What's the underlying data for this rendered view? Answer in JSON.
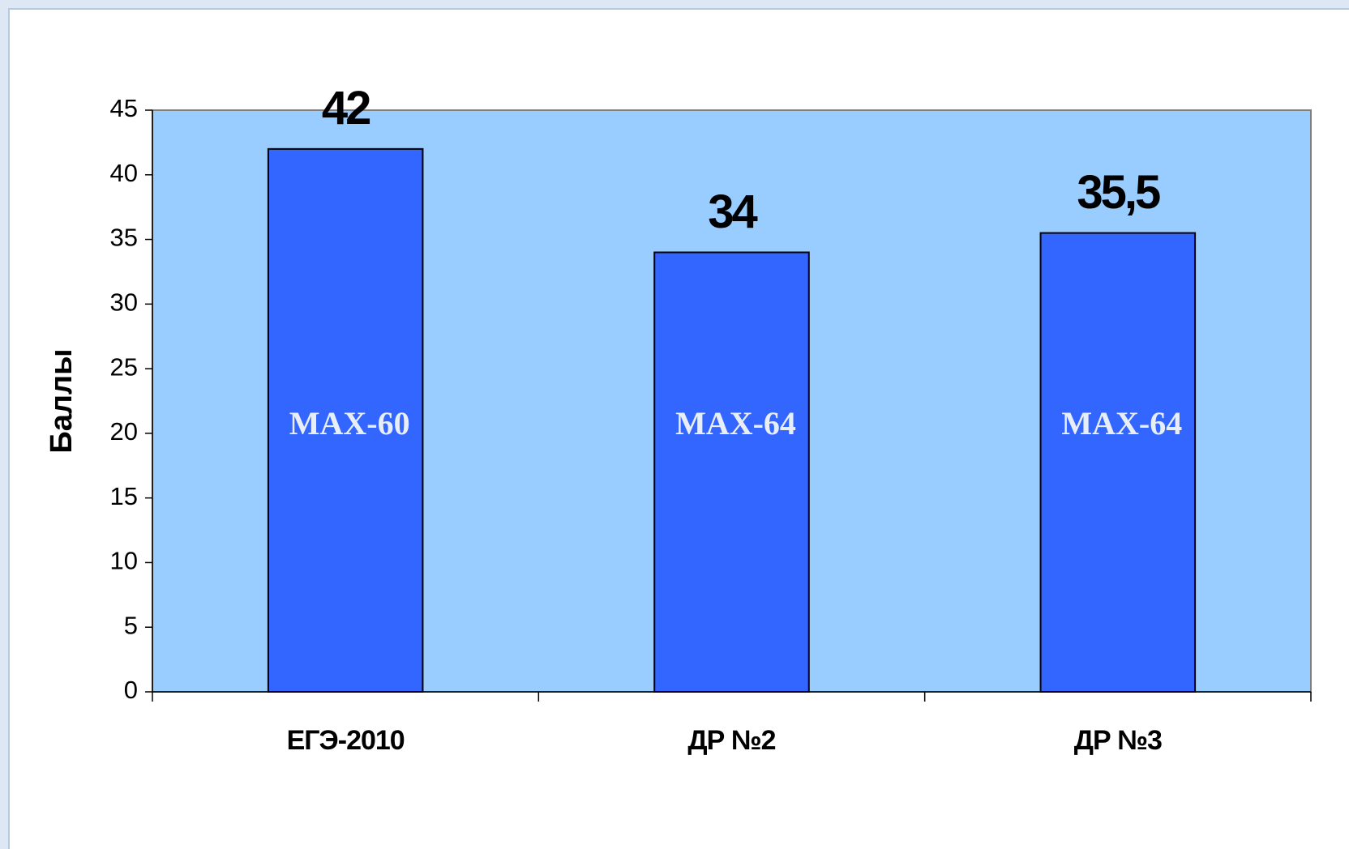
{
  "chart_data": {
    "type": "bar",
    "categories": [
      "ЕГЭ-2010",
      "ДР №2",
      "ДР №3"
    ],
    "values": [
      42,
      34,
      35.5
    ],
    "value_labels": [
      "42",
      "34",
      "35,5"
    ],
    "annotations": [
      "MAX-60",
      "MAX-64",
      "MAX-64"
    ],
    "y_label": "Баллы",
    "color": "#3366ff",
    "plot_background": "#99ccff",
    "ylim": [
      0,
      45
    ],
    "yticks": [
      0,
      5,
      10,
      15,
      20,
      25,
      30,
      35,
      40,
      45
    ],
    "grid": false
  }
}
